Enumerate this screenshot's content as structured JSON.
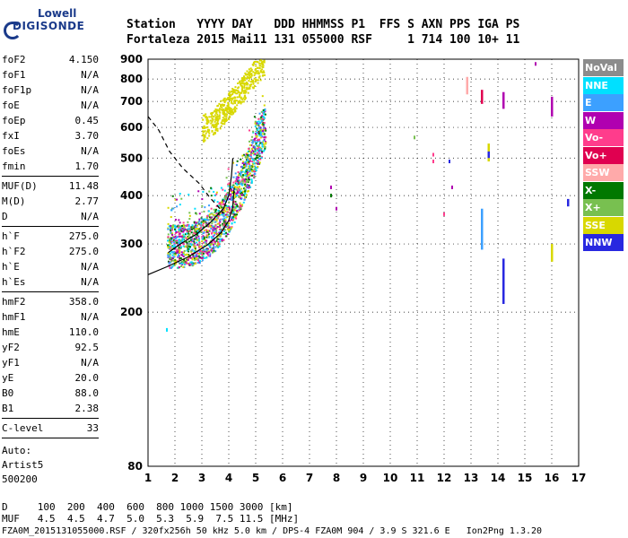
{
  "logo": {
    "line1": "Lowell",
    "line2": "DIGISONDE"
  },
  "header": {
    "row1": "Station   YYYY DAY   DDD HHMMSS P1  FFS S AXN PPS IGA PS",
    "row2": "Fortaleza 2015 Mai11 131 055000 RSF     1 714 100 10+ 11"
  },
  "params": [
    {
      "k": "foF2",
      "v": "4.150"
    },
    {
      "k": "foF1",
      "v": "N/A"
    },
    {
      "k": "foF1p",
      "v": "N/A"
    },
    {
      "k": "foE",
      "v": "N/A"
    },
    {
      "k": "foEp",
      "v": "0.45"
    },
    {
      "k": "fxI",
      "v": "3.70"
    },
    {
      "k": "foEs",
      "v": "N/A"
    },
    {
      "k": "fmin",
      "v": "1.70"
    },
    {
      "sep": true
    },
    {
      "k": "MUF(D)",
      "v": "11.48"
    },
    {
      "k": "M(D)",
      "v": "2.77"
    },
    {
      "k": "D",
      "v": "N/A"
    },
    {
      "sep": true
    },
    {
      "k": "h`F",
      "v": "275.0"
    },
    {
      "k": "h`F2",
      "v": "275.0"
    },
    {
      "k": "h`E",
      "v": "N/A"
    },
    {
      "k": "h`Es",
      "v": "N/A"
    },
    {
      "sep": true
    },
    {
      "k": "hmF2",
      "v": "358.0"
    },
    {
      "k": "hmF1",
      "v": "N/A"
    },
    {
      "k": "hmE",
      "v": "110.0"
    },
    {
      "k": "yF2",
      "v": "92.5"
    },
    {
      "k": "yF1",
      "v": "N/A"
    },
    {
      "k": "yE",
      "v": "20.0"
    },
    {
      "k": "B0",
      "v": "88.0"
    },
    {
      "k": "B1",
      "v": "2.38"
    },
    {
      "sep": true
    },
    {
      "k": "C-level",
      "v": "33"
    },
    {
      "sep": true
    }
  ],
  "auto": [
    "Auto:",
    "Artist5",
    "500200"
  ],
  "legend": [
    {
      "label": "NoVal",
      "color": "#8c8c8c"
    },
    {
      "label": "NNE",
      "color": "#00e0ff"
    },
    {
      "label": "E",
      "color": "#3ca0ff"
    },
    {
      "label": "W",
      "color": "#b000b0"
    },
    {
      "label": "Vo-",
      "color": "#ff3c8c"
    },
    {
      "label": "Vo+",
      "color": "#e00050"
    },
    {
      "label": "SSW",
      "color": "#ffaaaa"
    },
    {
      "label": "X-",
      "color": "#007800"
    },
    {
      "label": "X+",
      "color": "#78c050"
    },
    {
      "label": "SSE",
      "color": "#d8d800"
    },
    {
      "label": "NNW",
      "color": "#2828e0"
    }
  ],
  "bottom": {
    "line1": "D     100  200  400  600  800 1000 1500 3000 [km]",
    "line2": "MUF   4.5  4.5  4.7  5.0  5.3  5.9  7.5 11.5 [MHz]",
    "line3": "FZA0M_2015131055000.RSF / 320fx256h 50 kHz 5.0 km / DPS-4 FZA0M 904 / 3.9 S 321.6 E   Ion2Png 1.3.20"
  },
  "chart_data": {
    "type": "scatter",
    "xlim": [
      1,
      17
    ],
    "ylim": [
      80,
      900
    ],
    "y_scale": "log",
    "x_ticks": [
      1,
      2,
      3,
      4,
      5,
      6,
      7,
      8,
      9,
      10,
      11,
      12,
      13,
      14,
      15,
      16,
      17
    ],
    "y_ticks": [
      80,
      200,
      300,
      400,
      500,
      600,
      700,
      800,
      900
    ],
    "grid": true,
    "clusters": [
      {
        "name": "o-trace",
        "x0": 1.7,
        "x1": 5.35,
        "h0": 275,
        "h1": 620,
        "colors": [
          "#d8d800",
          "#3ca0ff",
          "#00e0ff",
          "#ff3c8c",
          "#b000b0",
          "#007800",
          "#78c050"
        ]
      },
      {
        "name": "multihop",
        "x0": 3.0,
        "x1": 5.3,
        "h0": 600,
        "h1": 890,
        "colors": [
          "#d8d800"
        ]
      }
    ],
    "scattered_points": [
      {
        "x": 1.7,
        "y": 180,
        "c": "#00e0ff"
      },
      {
        "x": 7.8,
        "y": 420,
        "c": "#b000b0"
      },
      {
        "x": 7.8,
        "y": 400,
        "c": "#007800"
      },
      {
        "x": 8.0,
        "y": 370,
        "c": "#b000b0"
      },
      {
        "x": 10.9,
        "y": 565,
        "c": "#78c050"
      },
      {
        "x": 11.6,
        "y": 510,
        "c": "#ff3c8c"
      },
      {
        "x": 11.6,
        "y": 490,
        "c": "#ff3c8c"
      },
      {
        "x": 12.0,
        "y": 358,
        "c": "#ff3c8c"
      },
      {
        "x": 12.2,
        "y": 490,
        "c": "#2828e0"
      },
      {
        "x": 12.3,
        "y": 420,
        "c": "#b000b0"
      },
      {
        "x": 15.4,
        "y": 875,
        "c": "#b000b0"
      },
      {
        "x": 16.6,
        "y": 385,
        "c": "#3ca0ff"
      }
    ],
    "vertical_segments": [
      {
        "x": 12.85,
        "y0": 730,
        "y1": 810,
        "c": "#ffaaaa"
      },
      {
        "x": 13.4,
        "y0": 290,
        "y1": 370,
        "c": "#3ca0ff"
      },
      {
        "x": 13.4,
        "y0": 690,
        "y1": 750,
        "c": "#e00050"
      },
      {
        "x": 13.65,
        "y0": 490,
        "y1": 545,
        "c": "#d8d800"
      },
      {
        "x": 14.2,
        "y0": 210,
        "y1": 275,
        "c": "#2828e0"
      },
      {
        "x": 14.2,
        "y0": 670,
        "y1": 740,
        "c": "#b000b0"
      },
      {
        "x": 16.0,
        "y0": 270,
        "y1": 300,
        "c": "#d8d800"
      },
      {
        "x": 16.0,
        "y0": 640,
        "y1": 720,
        "c": "#b000b0"
      },
      {
        "x": 16.6,
        "y0": 375,
        "y1": 392,
        "c": "#2828e0"
      },
      {
        "x": 13.65,
        "y0": 500,
        "y1": 520,
        "c": "#2828e0"
      }
    ],
    "curves": [
      {
        "name": "solid-lower",
        "style": "solid",
        "points": [
          [
            1,
            250
          ],
          [
            1.7,
            262
          ],
          [
            2.5,
            278
          ],
          [
            3.2,
            298
          ],
          [
            3.7,
            320
          ],
          [
            4.0,
            345
          ],
          [
            4.15,
            375
          ],
          [
            4.2,
            420
          ]
        ]
      },
      {
        "name": "solid-upper",
        "style": "solid",
        "points": [
          [
            1.75,
            285
          ],
          [
            2.2,
            300
          ],
          [
            2.8,
            318
          ],
          [
            3.3,
            340
          ],
          [
            3.8,
            370
          ],
          [
            4.0,
            400
          ],
          [
            4.1,
            450
          ],
          [
            4.15,
            500
          ]
        ]
      },
      {
        "name": "dashed",
        "style": "dashed",
        "points": [
          [
            1,
            640
          ],
          [
            1.4,
            590
          ],
          [
            1.8,
            520
          ],
          [
            2.3,
            470
          ],
          [
            2.9,
            430
          ],
          [
            3.3,
            395
          ],
          [
            3.6,
            375
          ],
          [
            3.8,
            360
          ]
        ]
      }
    ]
  }
}
